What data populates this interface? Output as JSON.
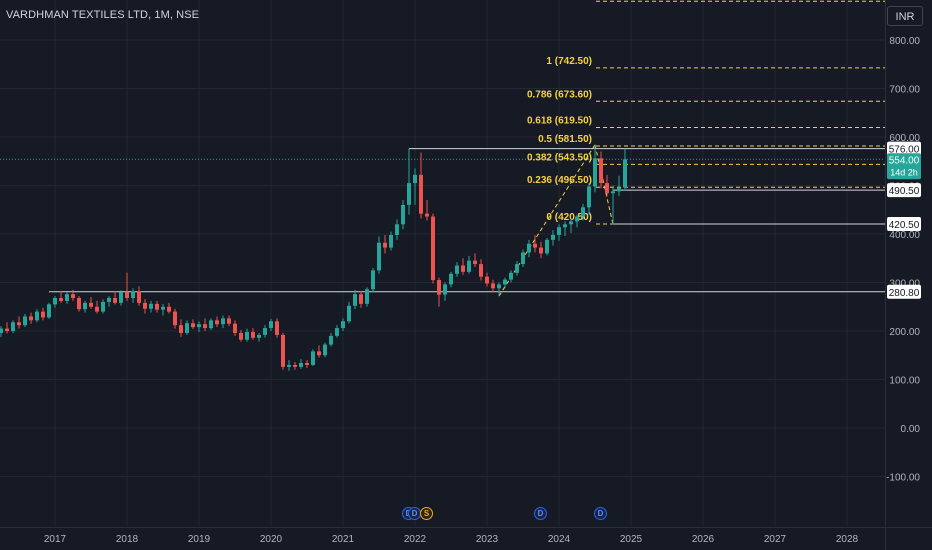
{
  "header": {
    "symbol_title": "VARDHMAN TEXTILES LTD, 1M, NSE",
    "currency": "INR"
  },
  "colors": {
    "background": "#161a25",
    "up": "#26a69a",
    "down": "#ef5350",
    "fib": "#f5d142",
    "hline": "#d1d4dc",
    "axis_text": "#b2b5be"
  },
  "chart_data": {
    "type": "candlestick",
    "title": "VARDHMAN TEXTILES LTD, 1M, NSE",
    "xlim": [
      "2016-01",
      "2029-01"
    ],
    "ylim": [
      -150,
      900
    ],
    "x_ticks": [
      "2017",
      "2018",
      "2019",
      "2020",
      "2021",
      "2022",
      "2023",
      "2024",
      "2025",
      "2026",
      "2027",
      "2028"
    ],
    "y_ticks": [
      "-100.00",
      "0.00",
      "100.00",
      "200.00",
      "300.00",
      "400.00",
      "500.00",
      "600.00",
      "700.00",
      "800.00"
    ],
    "grid": true,
    "candles": [
      {
        "t": "2016-01",
        "o": 165,
        "h": 182,
        "l": 148,
        "c": 160
      },
      {
        "t": "2016-02",
        "o": 160,
        "h": 178,
        "l": 150,
        "c": 174
      },
      {
        "t": "2016-03",
        "o": 174,
        "h": 200,
        "l": 168,
        "c": 196
      },
      {
        "t": "2016-04",
        "o": 196,
        "h": 210,
        "l": 188,
        "c": 205
      },
      {
        "t": "2016-05",
        "o": 205,
        "h": 218,
        "l": 195,
        "c": 200
      },
      {
        "t": "2016-06",
        "o": 200,
        "h": 222,
        "l": 196,
        "c": 218
      },
      {
        "t": "2016-07",
        "o": 218,
        "h": 230,
        "l": 205,
        "c": 212
      },
      {
        "t": "2016-08",
        "o": 212,
        "h": 235,
        "l": 208,
        "c": 230
      },
      {
        "t": "2016-09",
        "o": 230,
        "h": 238,
        "l": 215,
        "c": 222
      },
      {
        "t": "2016-10",
        "o": 222,
        "h": 245,
        "l": 218,
        "c": 240
      },
      {
        "t": "2016-11",
        "o": 240,
        "h": 248,
        "l": 222,
        "c": 228
      },
      {
        "t": "2016-12",
        "o": 228,
        "h": 258,
        "l": 225,
        "c": 255
      },
      {
        "t": "2017-01",
        "o": 255,
        "h": 272,
        "l": 248,
        "c": 268
      },
      {
        "t": "2017-02",
        "o": 268,
        "h": 282,
        "l": 258,
        "c": 262
      },
      {
        "t": "2017-03",
        "o": 262,
        "h": 280,
        "l": 256,
        "c": 276
      },
      {
        "t": "2017-04",
        "o": 276,
        "h": 285,
        "l": 262,
        "c": 268
      },
      {
        "t": "2017-05",
        "o": 268,
        "h": 272,
        "l": 240,
        "c": 245
      },
      {
        "t": "2017-06",
        "o": 245,
        "h": 262,
        "l": 238,
        "c": 258
      },
      {
        "t": "2017-07",
        "o": 258,
        "h": 270,
        "l": 246,
        "c": 250
      },
      {
        "t": "2017-08",
        "o": 250,
        "h": 262,
        "l": 236,
        "c": 240
      },
      {
        "t": "2017-09",
        "o": 240,
        "h": 265,
        "l": 236,
        "c": 260
      },
      {
        "t": "2017-10",
        "o": 260,
        "h": 272,
        "l": 250,
        "c": 268
      },
      {
        "t": "2017-11",
        "o": 268,
        "h": 282,
        "l": 255,
        "c": 258
      },
      {
        "t": "2017-12",
        "o": 258,
        "h": 284,
        "l": 252,
        "c": 280
      },
      {
        "t": "2018-01",
        "o": 280,
        "h": 320,
        "l": 262,
        "c": 268
      },
      {
        "t": "2018-02",
        "o": 268,
        "h": 288,
        "l": 258,
        "c": 282
      },
      {
        "t": "2018-03",
        "o": 282,
        "h": 292,
        "l": 252,
        "c": 258
      },
      {
        "t": "2018-04",
        "o": 258,
        "h": 266,
        "l": 236,
        "c": 246
      },
      {
        "t": "2018-05",
        "o": 246,
        "h": 262,
        "l": 238,
        "c": 256
      },
      {
        "t": "2018-06",
        "o": 256,
        "h": 262,
        "l": 238,
        "c": 244
      },
      {
        "t": "2018-07",
        "o": 244,
        "h": 256,
        "l": 232,
        "c": 250
      },
      {
        "t": "2018-08",
        "o": 250,
        "h": 258,
        "l": 236,
        "c": 240
      },
      {
        "t": "2018-09",
        "o": 240,
        "h": 246,
        "l": 205,
        "c": 212
      },
      {
        "t": "2018-10",
        "o": 212,
        "h": 224,
        "l": 188,
        "c": 196
      },
      {
        "t": "2018-11",
        "o": 196,
        "h": 222,
        "l": 192,
        "c": 216
      },
      {
        "t": "2018-12",
        "o": 216,
        "h": 224,
        "l": 204,
        "c": 208
      },
      {
        "t": "2019-01",
        "o": 208,
        "h": 220,
        "l": 198,
        "c": 214
      },
      {
        "t": "2019-02",
        "o": 214,
        "h": 226,
        "l": 200,
        "c": 206
      },
      {
        "t": "2019-03",
        "o": 206,
        "h": 226,
        "l": 202,
        "c": 222
      },
      {
        "t": "2019-04",
        "o": 222,
        "h": 230,
        "l": 208,
        "c": 214
      },
      {
        "t": "2019-05",
        "o": 214,
        "h": 232,
        "l": 206,
        "c": 226
      },
      {
        "t": "2019-06",
        "o": 226,
        "h": 232,
        "l": 210,
        "c": 215
      },
      {
        "t": "2019-07",
        "o": 215,
        "h": 222,
        "l": 190,
        "c": 196
      },
      {
        "t": "2019-08",
        "o": 196,
        "h": 202,
        "l": 178,
        "c": 182
      },
      {
        "t": "2019-09",
        "o": 182,
        "h": 205,
        "l": 178,
        "c": 198
      },
      {
        "t": "2019-10",
        "o": 198,
        "h": 206,
        "l": 182,
        "c": 186
      },
      {
        "t": "2019-11",
        "o": 186,
        "h": 196,
        "l": 178,
        "c": 192
      },
      {
        "t": "2019-12",
        "o": 192,
        "h": 212,
        "l": 186,
        "c": 206
      },
      {
        "t": "2020-01",
        "o": 206,
        "h": 225,
        "l": 200,
        "c": 220
      },
      {
        "t": "2020-02",
        "o": 220,
        "h": 226,
        "l": 186,
        "c": 192
      },
      {
        "t": "2020-03",
        "o": 192,
        "h": 196,
        "l": 120,
        "c": 126
      },
      {
        "t": "2020-04",
        "o": 126,
        "h": 140,
        "l": 118,
        "c": 130
      },
      {
        "t": "2020-05",
        "o": 130,
        "h": 136,
        "l": 120,
        "c": 126
      },
      {
        "t": "2020-06",
        "o": 126,
        "h": 142,
        "l": 122,
        "c": 134
      },
      {
        "t": "2020-07",
        "o": 134,
        "h": 140,
        "l": 124,
        "c": 130
      },
      {
        "t": "2020-08",
        "o": 130,
        "h": 162,
        "l": 128,
        "c": 158
      },
      {
        "t": "2020-09",
        "o": 158,
        "h": 170,
        "l": 145,
        "c": 150
      },
      {
        "t": "2020-10",
        "o": 150,
        "h": 176,
        "l": 146,
        "c": 172
      },
      {
        "t": "2020-11",
        "o": 172,
        "h": 196,
        "l": 168,
        "c": 190
      },
      {
        "t": "2020-12",
        "o": 190,
        "h": 212,
        "l": 186,
        "c": 206
      },
      {
        "t": "2021-01",
        "o": 206,
        "h": 226,
        "l": 200,
        "c": 220
      },
      {
        "t": "2021-02",
        "o": 220,
        "h": 260,
        "l": 216,
        "c": 252
      },
      {
        "t": "2021-03",
        "o": 252,
        "h": 285,
        "l": 245,
        "c": 276
      },
      {
        "t": "2021-04",
        "o": 276,
        "h": 282,
        "l": 248,
        "c": 256
      },
      {
        "t": "2021-05",
        "o": 256,
        "h": 290,
        "l": 250,
        "c": 286
      },
      {
        "t": "2021-06",
        "o": 286,
        "h": 330,
        "l": 280,
        "c": 325
      },
      {
        "t": "2021-07",
        "o": 325,
        "h": 395,
        "l": 318,
        "c": 382
      },
      {
        "t": "2021-08",
        "o": 382,
        "h": 398,
        "l": 360,
        "c": 372
      },
      {
        "t": "2021-09",
        "o": 372,
        "h": 405,
        "l": 366,
        "c": 398
      },
      {
        "t": "2021-10",
        "o": 398,
        "h": 430,
        "l": 388,
        "c": 420
      },
      {
        "t": "2021-11",
        "o": 420,
        "h": 470,
        "l": 410,
        "c": 460
      },
      {
        "t": "2021-12",
        "o": 460,
        "h": 576,
        "l": 440,
        "c": 505
      },
      {
        "t": "2022-01",
        "o": 505,
        "h": 535,
        "l": 460,
        "c": 522
      },
      {
        "t": "2022-02",
        "o": 522,
        "h": 568,
        "l": 432,
        "c": 442
      },
      {
        "t": "2022-03",
        "o": 442,
        "h": 470,
        "l": 428,
        "c": 436
      },
      {
        "t": "2022-04",
        "o": 436,
        "h": 442,
        "l": 298,
        "c": 305
      },
      {
        "t": "2022-05",
        "o": 305,
        "h": 310,
        "l": 250,
        "c": 275
      },
      {
        "t": "2022-06",
        "o": 275,
        "h": 300,
        "l": 262,
        "c": 296
      },
      {
        "t": "2022-07",
        "o": 296,
        "h": 322,
        "l": 290,
        "c": 318
      },
      {
        "t": "2022-08",
        "o": 318,
        "h": 342,
        "l": 312,
        "c": 335
      },
      {
        "t": "2022-09",
        "o": 335,
        "h": 350,
        "l": 316,
        "c": 322
      },
      {
        "t": "2022-10",
        "o": 322,
        "h": 355,
        "l": 318,
        "c": 345
      },
      {
        "t": "2022-11",
        "o": 345,
        "h": 360,
        "l": 332,
        "c": 338
      },
      {
        "t": "2022-12",
        "o": 338,
        "h": 348,
        "l": 304,
        "c": 312
      },
      {
        "t": "2023-01",
        "o": 312,
        "h": 320,
        "l": 292,
        "c": 298
      },
      {
        "t": "2023-02",
        "o": 298,
        "h": 306,
        "l": 280,
        "c": 288
      },
      {
        "t": "2023-03",
        "o": 288,
        "h": 300,
        "l": 272,
        "c": 296
      },
      {
        "t": "2023-04",
        "o": 296,
        "h": 310,
        "l": 288,
        "c": 306
      },
      {
        "t": "2023-05",
        "o": 306,
        "h": 325,
        "l": 300,
        "c": 320
      },
      {
        "t": "2023-06",
        "o": 320,
        "h": 344,
        "l": 314,
        "c": 338
      },
      {
        "t": "2023-07",
        "o": 338,
        "h": 368,
        "l": 332,
        "c": 362
      },
      {
        "t": "2023-08",
        "o": 362,
        "h": 388,
        "l": 352,
        "c": 380
      },
      {
        "t": "2023-09",
        "o": 380,
        "h": 398,
        "l": 362,
        "c": 372
      },
      {
        "t": "2023-10",
        "o": 372,
        "h": 384,
        "l": 350,
        "c": 360
      },
      {
        "t": "2023-11",
        "o": 360,
        "h": 392,
        "l": 356,
        "c": 388
      },
      {
        "t": "2023-12",
        "o": 388,
        "h": 408,
        "l": 376,
        "c": 398
      },
      {
        "t": "2024-01",
        "o": 398,
        "h": 420,
        "l": 386,
        "c": 414
      },
      {
        "t": "2024-02",
        "o": 414,
        "h": 426,
        "l": 396,
        "c": 420
      },
      {
        "t": "2024-03",
        "o": 420,
        "h": 432,
        "l": 402,
        "c": 426
      },
      {
        "t": "2024-04",
        "o": 426,
        "h": 440,
        "l": 414,
        "c": 436
      },
      {
        "t": "2024-05",
        "o": 436,
        "h": 462,
        "l": 428,
        "c": 455
      },
      {
        "t": "2024-06",
        "o": 455,
        "h": 505,
        "l": 440,
        "c": 498
      },
      {
        "t": "2024-07",
        "o": 498,
        "h": 584,
        "l": 486,
        "c": 556
      },
      {
        "t": "2024-08",
        "o": 556,
        "h": 570,
        "l": 494,
        "c": 505
      },
      {
        "t": "2024-09",
        "o": 505,
        "h": 522,
        "l": 478,
        "c": 484
      },
      {
        "t": "2024-10",
        "o": 484,
        "h": 500,
        "l": 420,
        "c": 488
      },
      {
        "t": "2024-11",
        "o": 488,
        "h": 520,
        "l": 478,
        "c": 496
      },
      {
        "t": "2024-12",
        "o": 496,
        "h": 576,
        "l": 490,
        "c": 554
      }
    ],
    "fib_levels": [
      {
        "label": "1 (742.50)",
        "price": 742.5
      },
      {
        "label": "0.786 (673.60)",
        "price": 673.6
      },
      {
        "label": "0.618 (619.50)",
        "price": 619.5
      },
      {
        "label": "0.5 (581.50)",
        "price": 581.5
      },
      {
        "label": "0.382 (543.50)",
        "price": 543.5
      },
      {
        "label": "0.236 (496.50)",
        "price": 496.5
      },
      {
        "label": "0 (420.50)",
        "price": 420.5
      }
    ],
    "fib_top_line_price": 880,
    "horizontal_lines": [
      {
        "price": 576.0,
        "label": "576.00"
      },
      {
        "price": 280.8,
        "label": "280.80"
      }
    ],
    "price_labels": [
      {
        "price": 576.0,
        "text": "576.00",
        "style": "white"
      },
      {
        "price": 490.5,
        "text": "490.50",
        "style": "white"
      },
      {
        "price": 420.5,
        "text": "420.50",
        "style": "white"
      },
      {
        "price": 280.8,
        "text": "280.80",
        "style": "white"
      }
    ],
    "last_price": {
      "price": 554.0,
      "text": "554.00",
      "countdown": "14d 2h"
    },
    "events": [
      {
        "t": "2021-12",
        "type": "dividend",
        "symbol": "D"
      },
      {
        "t": "2022-01",
        "type": "dividend",
        "symbol": "D"
      },
      {
        "t": "2022-03",
        "type": "split",
        "symbol": "S"
      },
      {
        "t": "2023-10",
        "type": "dividend",
        "symbol": "D"
      },
      {
        "t": "2024-08",
        "type": "dividend",
        "symbol": "D"
      }
    ]
  }
}
